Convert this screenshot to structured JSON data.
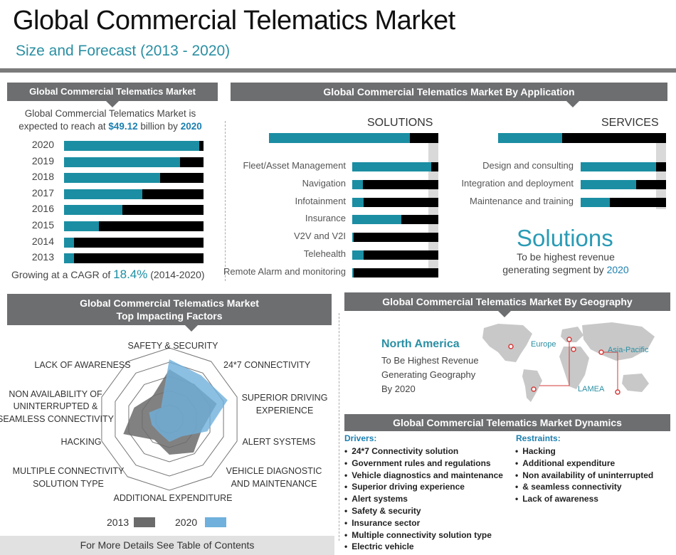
{
  "header": {
    "title": "Global Commercial Telematics Market",
    "subtitle": "Size and Forecast (2013 - 2020)"
  },
  "market_panel": {
    "heading": "Global Commercial Telematics Market",
    "intro_line1": "Global Commercial Telematics Market is",
    "intro_pre": "expected to reach at ",
    "intro_value": "$49.12",
    "intro_mid": " billion by ",
    "intro_year": "2020",
    "cagr_pre": "Growing at a CAGR of ",
    "cagr_value": "18.4%",
    "cagr_post": " (2014-2020)"
  },
  "application_panel": {
    "heading": "Global Commercial Telematics Market By Application",
    "solutions_label": "SOLUTIONS",
    "services_label": "SERVICES",
    "highlight_title": "Solutions",
    "highlight_line1": "To be highest revenue",
    "highlight_line2_pre": "generating segment by ",
    "highlight_year": "2020"
  },
  "factors_panel": {
    "heading_line1": "Global Commercial Telematics Market",
    "heading_line2": "Top Impacting Factors",
    "legend_2013": "2013",
    "legend_2020": "2020"
  },
  "geography_panel": {
    "heading": "Global Commercial Telematics Market By Geography",
    "region": "North America",
    "line1": "To Be Highest Revenue",
    "line2": "Generating Geography",
    "line3": "By 2020",
    "map_labels": [
      "Europe",
      "Asia-Pacific",
      "LAMEA"
    ]
  },
  "dynamics_panel": {
    "heading": "Global Commercial Telematics Market Dynamics",
    "drivers_label": "Drivers:",
    "drivers": [
      "24*7 Connectivity solution",
      "Government rules and regulations",
      "Vehicle diagnostics and maintenance",
      "Superior driving experience",
      "Alert systems",
      "Safety & security",
      "Insurance sector",
      "Multiple connectivity solution type",
      "Electric vehicle"
    ],
    "restraints_label": "Restraints:",
    "restraints": [
      "Hacking",
      "Additional expenditure",
      "Non availability of uninterrupted",
      "& seamless connectivity",
      "Lack of awareness"
    ]
  },
  "footer": {
    "text": "For More Details See Table of Contents"
  },
  "colors": {
    "teal": "#1b8ea3",
    "black": "#000000",
    "header_grey": "#6d6e70",
    "radar_2013": "#6b6b6b",
    "radar_2020": "#6fb0dc"
  },
  "chart_data": [
    {
      "type": "bar",
      "orientation": "horizontal",
      "stacked": true,
      "categories": [
        "2020",
        "2019",
        "2018",
        "2017",
        "2016",
        "2015",
        "2014",
        "2013"
      ],
      "series": [
        {
          "values": [
            0.97,
            0.83,
            0.69,
            0.56,
            0.42,
            0.25,
            0.07,
            0.07
          ]
        },
        {
          "values": [
            0.03,
            0.17,
            0.31,
            0.44,
            0.58,
            0.75,
            0.93,
            0.93
          ]
        }
      ],
      "xlim": [
        0,
        1
      ]
    },
    {
      "type": "bar",
      "orientation": "horizontal",
      "stacked": true,
      "title": "SOLUTIONS",
      "categories": [
        "Fleet/Asset Management",
        "Navigation",
        "Infotainment",
        "Insurance",
        "V2V and V2I",
        "Telehealth",
        "Remote Alarm and monitoring"
      ],
      "series": [
        {
          "values": [
            0.92,
            0.12,
            0.13,
            0.57,
            0.02,
            0.13,
            0.02
          ]
        },
        {
          "values": [
            0.08,
            0.88,
            0.87,
            0.43,
            0.98,
            0.87,
            0.98
          ]
        }
      ],
      "total_bar": [
        0.83,
        0.17
      ],
      "xlim": [
        0,
        1
      ]
    },
    {
      "type": "bar",
      "orientation": "horizontal",
      "stacked": true,
      "title": "SERVICES",
      "categories": [
        "Design and consulting",
        "Integration and deployment",
        "Maintenance and training"
      ],
      "series": [
        {
          "values": [
            0.88,
            0.65,
            0.34
          ]
        },
        {
          "values": [
            0.12,
            0.35,
            0.66
          ]
        }
      ],
      "total_bar": [
        0.38,
        0.62
      ],
      "xlim": [
        0,
        1
      ]
    },
    {
      "type": "radar",
      "categories": [
        "SAFETY & SECURITY",
        "24*7 CONNECTIVITY",
        "SUPERIOR DRIVING EXPERIENCE",
        "ALERT SYSTEMS",
        "VEHICLE DIAGNOSTIC AND MAINTENANCE",
        "ADDITIONAL EXPENDITURE",
        "MULTIPLE CONNECTIVITY SOLUTION TYPE",
        "HACKING",
        "NON AVAILABILITY OF UNINTERRUPTED & SEAMLESS CONNECTIVITY",
        "LACK OF AWARENESS"
      ],
      "series": [
        {
          "name": "2013",
          "values": [
            3.5,
            3.0,
            3.5,
            2.4,
            2.9,
            2.5,
            1.8,
            3.4,
            2.6,
            2.0
          ]
        },
        {
          "name": "2020",
          "values": [
            4.2,
            3.8,
            4.3,
            2.8,
            1.5,
            1.6,
            1.2,
            1.3,
            1.5,
            1.0
          ]
        }
      ],
      "rlim": [
        0,
        5
      ]
    }
  ]
}
